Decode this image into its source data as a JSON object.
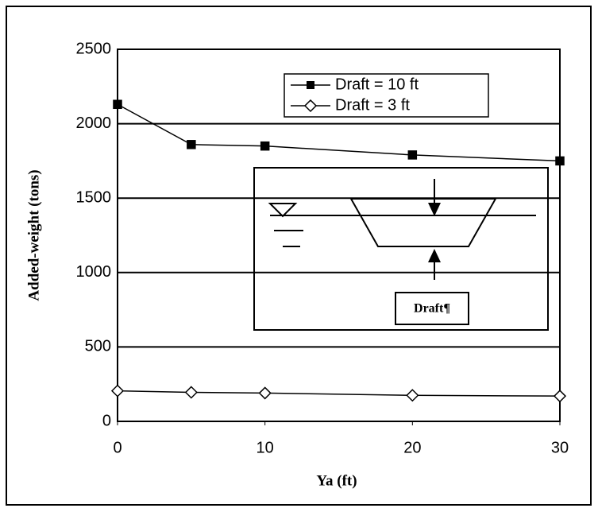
{
  "chart_data": {
    "type": "line",
    "x_label": "Ya (ft)",
    "y_label": "Added-weight (tons)",
    "x": [
      0,
      5,
      10,
      20,
      30
    ],
    "series": [
      {
        "name": "Draft = 10 ft",
        "color": "#000000",
        "marker": "square",
        "values": [
          2130,
          1860,
          1850,
          1790,
          1750
        ]
      },
      {
        "name": "Draft = 3 ft",
        "color": "#000000",
        "marker": "diamond",
        "values": [
          205,
          195,
          190,
          175,
          170
        ]
      }
    ],
    "xlim": [
      0,
      30
    ],
    "xticks": [
      0,
      10,
      20,
      30
    ],
    "ylim": [
      0,
      2500
    ],
    "yticks": [
      0,
      500,
      1000,
      1500,
      2000,
      2500
    ],
    "grid": true,
    "legend": "upper right",
    "inset_label": "Draft¶"
  }
}
